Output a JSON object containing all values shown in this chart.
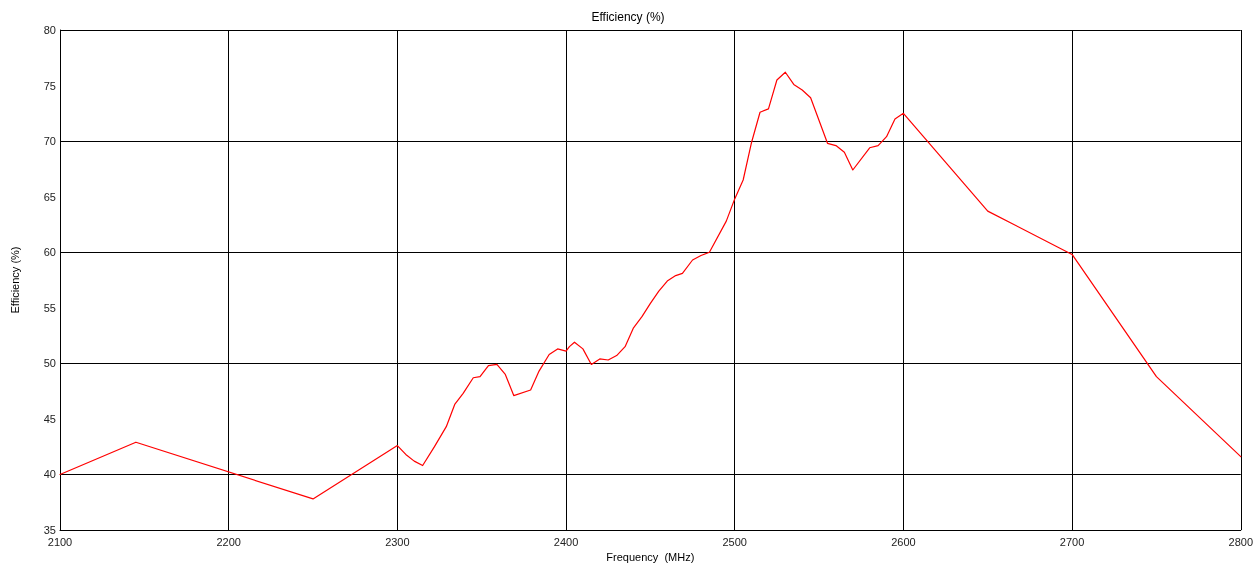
{
  "chart_data": {
    "type": "line",
    "title": "Efficiency (%)",
    "xlabel": "Frequency  (MHz)",
    "ylabel": "Efficiency (%)",
    "x": [
      2100,
      2145,
      2250,
      2300,
      2305,
      2310,
      2315,
      2322,
      2329,
      2334,
      2339,
      2345,
      2349,
      2354,
      2359,
      2364,
      2369,
      2379,
      2384,
      2390,
      2395,
      2400,
      2402,
      2405,
      2410,
      2415,
      2420,
      2425,
      2430,
      2435,
      2440,
      2445,
      2450,
      2455,
      2460,
      2465,
      2469,
      2475,
      2480,
      2485,
      2495,
      2500,
      2505,
      2510,
      2515,
      2520,
      2525,
      2530,
      2535,
      2540,
      2545,
      2555,
      2560,
      2565,
      2570,
      2580,
      2585,
      2590,
      2595,
      2600,
      2650,
      2700,
      2750,
      2800
    ],
    "series": [
      {
        "color": "#ff0000",
        "values": [
          40,
          42.9,
          37.8,
          42.6,
          41.8,
          41.2,
          40.8,
          42.5,
          44.3,
          46.3,
          47.3,
          48.7,
          48.8,
          49.8,
          49.9,
          49.0,
          47.1,
          47.6,
          49.3,
          50.8,
          51.3,
          51.1,
          51.5,
          51.9,
          51.3,
          49.9,
          50.4,
          50.3,
          50.7,
          51.5,
          53.2,
          54.2,
          55.4,
          56.5,
          57.4,
          57.9,
          58.1,
          59.3,
          59.7,
          60.0,
          62.8,
          64.8,
          66.5,
          69.9,
          72.6,
          72.9,
          75.5,
          76.2,
          75.1,
          74.6,
          73.9,
          69.8,
          69.6,
          69.0,
          67.4,
          69.4,
          69.6,
          70.4,
          72.0,
          72.5,
          63.7,
          59.8,
          48.8,
          41.6
        ]
      }
    ],
    "xlim": [
      2100,
      2800
    ],
    "xticks": [
      2100,
      2200,
      2300,
      2400,
      2500,
      2600,
      2700,
      2800
    ],
    "ylim": [
      35,
      80
    ],
    "yticks": [
      35,
      40,
      45,
      50,
      55,
      60,
      65,
      70,
      75,
      80
    ],
    "grid": true,
    "marker": "none",
    "line_style": "solid"
  }
}
